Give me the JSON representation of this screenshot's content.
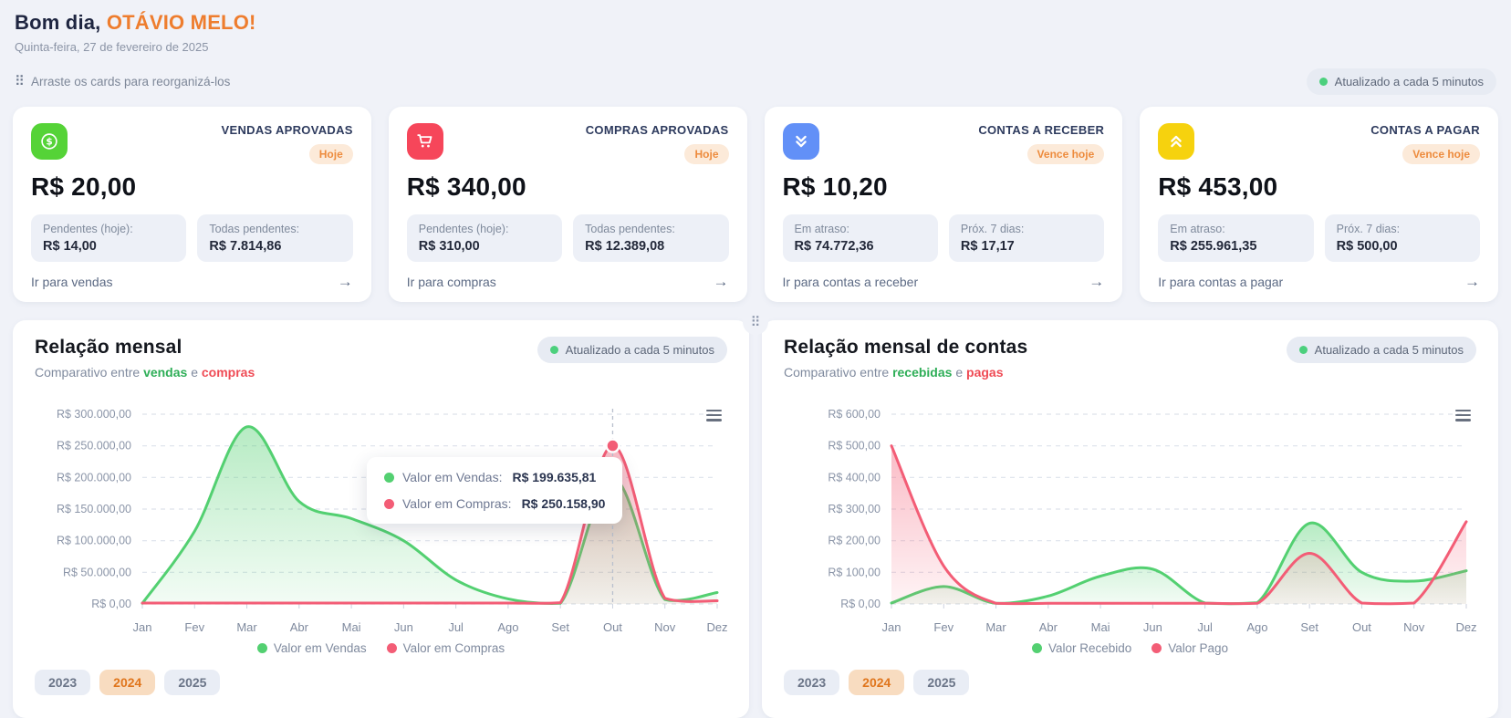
{
  "header": {
    "greeting": "Bom dia,",
    "user_name": "OTÁVIO MELO!",
    "date": "Quinta-feira, 27 de fevereiro de 2025",
    "drag_hint": "Arraste os cards para reorganizá-los",
    "refresh_badge": "Atualizado a cada 5 minutos"
  },
  "icons": {
    "drag_handle": "⠿",
    "arrow_right": "→"
  },
  "colors": {
    "accent_orange": "#ee7d2e",
    "badge_bg": "#fcead9",
    "badge_text": "#ed8b3d",
    "status_green_dot": "#4cd07d",
    "chart_green": "#53d071",
    "chart_red": "#f35d76"
  },
  "cards": [
    {
      "icon": "dollar-circle-icon",
      "icon_bg": "#55d337",
      "title": "VENDAS APROVADAS",
      "badge": "Hoje",
      "value": "R$ 20,00",
      "stats": [
        {
          "label": "Pendentes (hoje):",
          "value": "R$ 14,00"
        },
        {
          "label": "Todas pendentes:",
          "value": "R$ 7.814,86"
        }
      ],
      "link": "Ir para vendas"
    },
    {
      "icon": "cart-icon",
      "icon_bg": "#f6465a",
      "title": "COMPRAS APROVADAS",
      "badge": "Hoje",
      "value": "R$ 340,00",
      "stats": [
        {
          "label": "Pendentes (hoje):",
          "value": "R$ 310,00"
        },
        {
          "label": "Todas pendentes:",
          "value": "R$ 12.389,08"
        }
      ],
      "link": "Ir para compras"
    },
    {
      "icon": "angles-down-icon",
      "icon_bg": "#6290f7",
      "title": "CONTAS A RECEBER",
      "badge": "Vence hoje",
      "value": "R$ 10,20",
      "stats": [
        {
          "label": "Em atraso:",
          "value": "R$ 74.772,36"
        },
        {
          "label": "Próx. 7 dias:",
          "value": "R$ 17,17"
        }
      ],
      "link": "Ir para contas a receber"
    },
    {
      "icon": "angles-up-icon",
      "icon_bg": "#f6d20e",
      "title": "CONTAS A PAGAR",
      "badge": "Vence hoje",
      "value": "R$ 453,00",
      "stats": [
        {
          "label": "Em atraso:",
          "value": "R$ 255.961,35"
        },
        {
          "label": "Próx. 7 dias:",
          "value": "R$ 500,00"
        }
      ],
      "link": "Ir para contas a pagar"
    }
  ],
  "charts": [
    {
      "title": "Relação mensal",
      "subtitle_prefix": "Comparativo entre ",
      "word1": "vendas",
      "word1_color": "#2eae57",
      "conj": " e ",
      "word2": "compras",
      "word2_color": "#ef4b55",
      "refresh_badge": "Atualizado a cada 5 minutos",
      "legend": [
        {
          "label": "Valor em Vendas",
          "color": "#53d071"
        },
        {
          "label": "Valor em Compras",
          "color": "#f35d76"
        }
      ],
      "tooltip": [
        {
          "label": "Valor em Vendas:",
          "value": "R$ 199.635,81",
          "color": "#53d071"
        },
        {
          "label": "Valor em Compras:",
          "value": "R$ 250.158,90",
          "color": "#f35d76"
        }
      ],
      "years": [
        "2023",
        "2024",
        "2025"
      ],
      "active_year": "2024"
    },
    {
      "title": "Relação mensal de contas",
      "subtitle_prefix": "Comparativo entre ",
      "word1": "recebidas",
      "word1_color": "#2eae57",
      "conj": " e ",
      "word2": "pagas",
      "word2_color": "#ef4b55",
      "refresh_badge": "Atualizado a cada 5 minutos",
      "legend": [
        {
          "label": "Valor Recebido",
          "color": "#53d071"
        },
        {
          "label": "Valor Pago",
          "color": "#f35d76"
        }
      ],
      "years": [
        "2023",
        "2024",
        "2025"
      ],
      "active_year": "2024"
    }
  ],
  "chart_data": [
    {
      "type": "area",
      "title": "Relação mensal",
      "x": [
        "Jan",
        "Fev",
        "Mar",
        "Abr",
        "Mai",
        "Jun",
        "Jul",
        "Ago",
        "Set",
        "Out",
        "Nov",
        "Dez"
      ],
      "series": [
        {
          "name": "Valor em Vendas",
          "color": "#53d071",
          "values": [
            1000,
            115000,
            280000,
            162000,
            135000,
            100000,
            38000,
            8000,
            1000,
            199635.81,
            7000,
            18000
          ]
        },
        {
          "name": "Valor em Compras",
          "color": "#f35d76",
          "values": [
            1500,
            1500,
            1500,
            1500,
            1500,
            1500,
            1500,
            1500,
            2000,
            250158.9,
            9000,
            5000
          ]
        }
      ],
      "ylabel_prefix": "R$",
      "ylim": [
        0,
        300000
      ],
      "ytick_step": 50000,
      "grid": true,
      "legend_position": "bottom",
      "highlight": {
        "series": 1,
        "index": 9
      }
    },
    {
      "type": "area",
      "title": "Relação mensal de contas",
      "x": [
        "Jan",
        "Fev",
        "Mar",
        "Abr",
        "Mai",
        "Jun",
        "Jul",
        "Ago",
        "Set",
        "Out",
        "Nov",
        "Dez"
      ],
      "series": [
        {
          "name": "Valor Recebido",
          "color": "#53d071",
          "values": [
            3,
            55,
            2,
            25,
            88,
            110,
            3,
            4,
            255,
            100,
            72,
            105
          ]
        },
        {
          "name": "Valor Pago",
          "color": "#f35d76",
          "values": [
            500,
            120,
            2,
            2,
            2,
            2,
            2,
            2,
            160,
            3,
            3,
            260
          ]
        }
      ],
      "ylabel_prefix": "R$",
      "ylim": [
        0,
        600
      ],
      "ytick_step": 100,
      "grid": true,
      "legend_position": "bottom"
    }
  ]
}
